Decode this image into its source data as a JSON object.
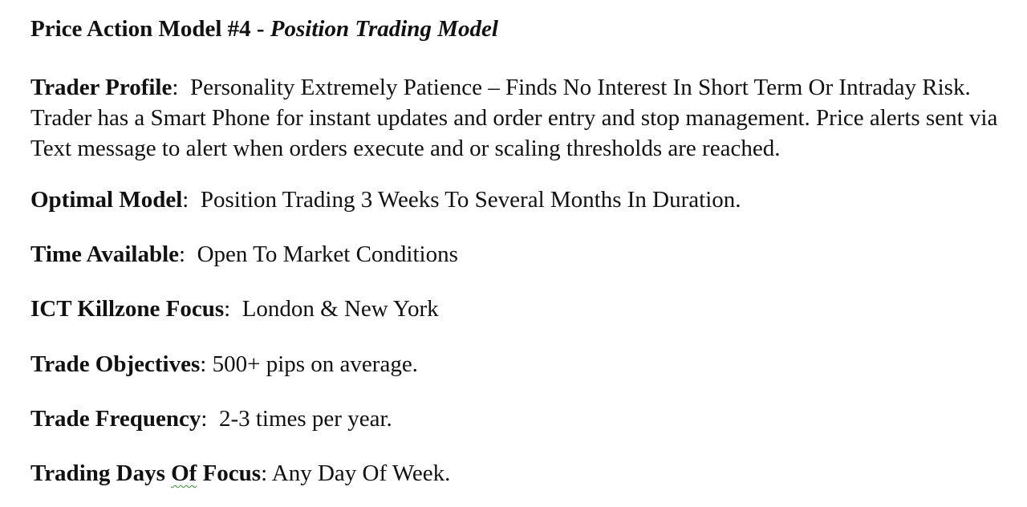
{
  "title": {
    "bold": "Price Action Model #4 - ",
    "italic": "Position Trading Model"
  },
  "trader_profile": {
    "label": "Trader Profile",
    "text": "Personality Extremely Patience – Finds No Interest In Short Term Or Intraday Risk.  Trader has a Smart Phone for instant updates and order entry and stop management.  Price alerts sent via Text message to alert when orders execute and or scaling thresholds are reached."
  },
  "fields": [
    {
      "label": "Optimal Model",
      "value": "Position Trading 3 Weeks To Several Months In Duration."
    },
    {
      "label": "Time Available",
      "value": "Open To Market Conditions"
    },
    {
      "label": "ICT Killzone Focus",
      "value": "London & New York"
    },
    {
      "label": "Trade Objectives",
      "value": "500+ pips on average."
    },
    {
      "label": "Trade Frequency",
      "value": "2-3 times per year."
    },
    {
      "label_part1": "Trading Days ",
      "label_part2": "Of",
      "label_part3": " Focus",
      "value": "Any Day Of Week."
    }
  ]
}
